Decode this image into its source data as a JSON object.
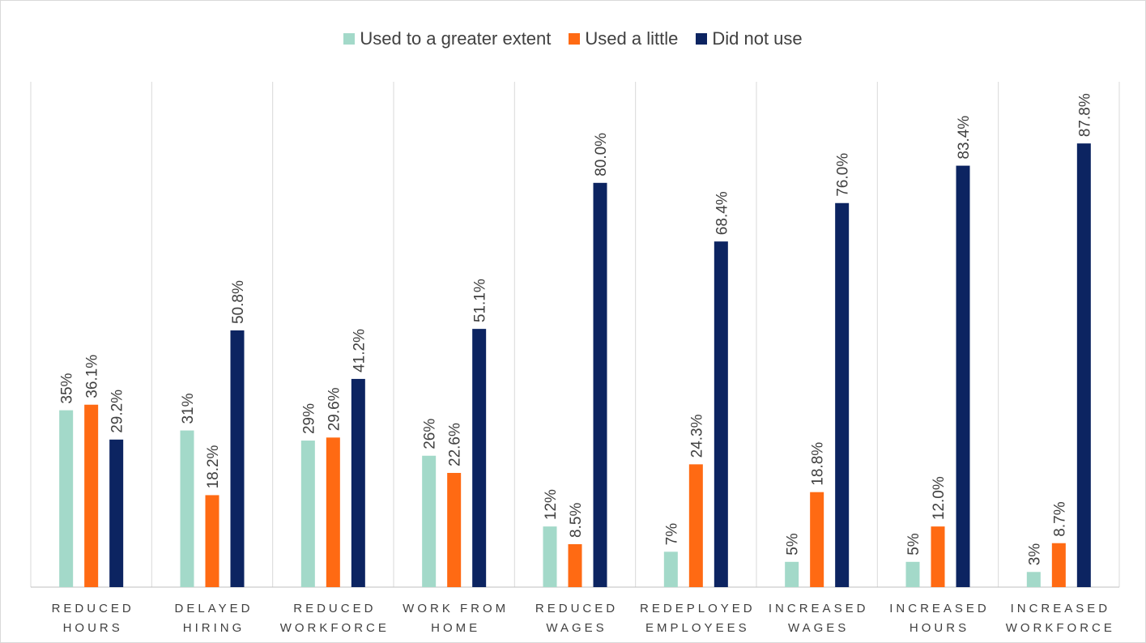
{
  "chart_data": {
    "type": "bar",
    "categories": [
      [
        "REDUCED",
        "HOURS"
      ],
      [
        "DELAYED",
        "HIRING"
      ],
      [
        "REDUCED",
        "WORKFORCE"
      ],
      [
        "WORK FROM",
        "HOME"
      ],
      [
        "REDUCED",
        "WAGES"
      ],
      [
        "REDEPLOYED",
        "EMPLOYEES"
      ],
      [
        "INCREASED",
        "WAGES"
      ],
      [
        "INCREASED",
        "HOURS"
      ],
      [
        "INCREASED",
        "WORKFORCE"
      ]
    ],
    "series": [
      {
        "name": "Used to a greater extent",
        "color": "#a3d9c9",
        "values": [
          35,
          31,
          29,
          26,
          12,
          7,
          5,
          5,
          3
        ],
        "labels": [
          "35%",
          "31%",
          "29%",
          "26%",
          "12%",
          "7%",
          "5%",
          "5%",
          "3%"
        ]
      },
      {
        "name": "Used a little",
        "color": "#ff6a13",
        "values": [
          36.1,
          18.2,
          29.6,
          22.6,
          8.5,
          24.3,
          18.8,
          12.0,
          8.7
        ],
        "labels": [
          "36.1%",
          "18.2%",
          "29.6%",
          "22.6%",
          "8.5%",
          "24.3%",
          "18.8%",
          "12.0%",
          "8.7%"
        ]
      },
      {
        "name": "Did not use",
        "color": "#0c2461",
        "values": [
          29.2,
          50.8,
          41.2,
          51.1,
          80.0,
          68.4,
          76.0,
          83.4,
          87.8
        ],
        "labels": [
          "29.2%",
          "50.8%",
          "41.2%",
          "51.1%",
          "80.0%",
          "68.4%",
          "76.0%",
          "83.4%",
          "87.8%"
        ]
      }
    ],
    "legend_position": "top",
    "grid": "vertical separators between categories",
    "ylim": [
      0,
      100
    ]
  }
}
